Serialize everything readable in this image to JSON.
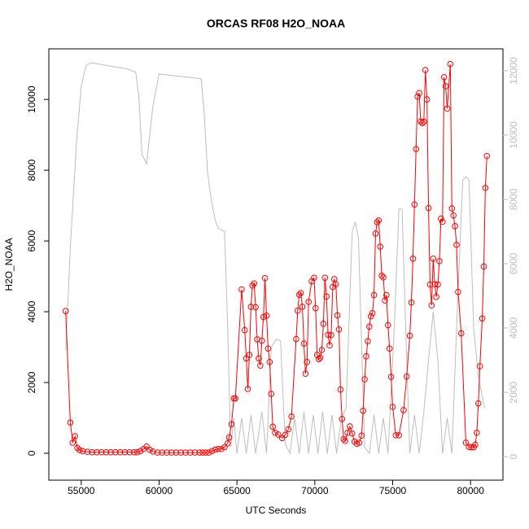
{
  "chart_data": {
    "type": "line",
    "title": "ORCAS RF08 H2O_NOAA",
    "x_label": "UTC Seconds",
    "y_label": "H2O_NOAA",
    "xlim": [
      52920,
      82080
    ],
    "ylim": [
      -760,
      11430
    ],
    "y2lim": [
      -730,
      12680
    ],
    "xticks": [
      55000,
      60000,
      65000,
      70000,
      75000,
      80000
    ],
    "yticks": [
      0,
      2000,
      4000,
      6000,
      8000,
      10000
    ],
    "y2ticks": [
      0,
      2000,
      4000,
      6000,
      8000,
      10000,
      12000
    ],
    "series": [
      {
        "color": "#ff0000",
        "markers": true,
        "x": [
          54000,
          54300,
          54450,
          54600,
          54750,
          54900,
          55100,
          55400,
          55700,
          56000,
          56300,
          56600,
          56900,
          57200,
          57500,
          57800,
          58100,
          58400,
          58600,
          58800,
          59000,
          59200,
          59400,
          59600,
          59900,
          60200,
          60500,
          60800,
          61100,
          61400,
          61700,
          62000,
          62300,
          62600,
          62800,
          63000,
          63200,
          63400,
          63600,
          63800,
          64000,
          64200,
          64400,
          64500,
          64650,
          64800,
          64900,
          65300,
          65500,
          65600,
          65700,
          65800,
          65900,
          66000,
          66100,
          66200,
          66300,
          66400,
          66500,
          66600,
          66700,
          66800,
          66900,
          67000,
          67100,
          67200,
          67300,
          67450,
          67650,
          67900,
          68100,
          68300,
          68500,
          68800,
          68900,
          69000,
          69100,
          69200,
          69300,
          69400,
          69500,
          69600,
          69800,
          69950,
          70050,
          70150,
          70250,
          70350,
          70450,
          70550,
          70650,
          70750,
          70850,
          70950,
          71050,
          71150,
          71250,
          71350,
          71450,
          71550,
          71650,
          71750,
          71850,
          71950,
          72100,
          72250,
          72400,
          72550,
          72700,
          72850,
          73000,
          73100,
          73200,
          73300,
          73400,
          73500,
          73600,
          73700,
          73800,
          73900,
          74000,
          74100,
          74200,
          74300,
          74400,
          74500,
          74600,
          74700,
          74800,
          74900,
          75000,
          75200,
          75400,
          75700,
          75900,
          76100,
          76200,
          76300,
          76400,
          76500,
          76600,
          76700,
          76800,
          76900,
          77000,
          77100,
          77200,
          77300,
          77400,
          77500,
          77600,
          77700,
          77800,
          77900,
          78000,
          78100,
          78200,
          78300,
          78400,
          78500,
          78700,
          78800,
          78900,
          79000,
          79100,
          79200,
          79400,
          79700,
          79900,
          80050,
          80200,
          80300,
          80400,
          80500,
          80600,
          80750,
          80850,
          80950,
          81050
        ],
        "values": [
          4020,
          870,
          300,
          480,
          150,
          90,
          60,
          40,
          30,
          30,
          30,
          30,
          30,
          30,
          30,
          30,
          30,
          30,
          30,
          60,
          120,
          190,
          100,
          50,
          20,
          20,
          20,
          20,
          20,
          20,
          20,
          20,
          20,
          20,
          20,
          20,
          20,
          60,
          100,
          120,
          120,
          170,
          280,
          450,
          820,
          1550,
          1550,
          4630,
          3480,
          2680,
          1820,
          2780,
          4140,
          4740,
          4800,
          4130,
          3220,
          2680,
          2480,
          3180,
          3850,
          4950,
          3890,
          2960,
          2580,
          1680,
          750,
          580,
          530,
          430,
          520,
          680,
          1040,
          3230,
          4030,
          4480,
          4530,
          4140,
          3100,
          2250,
          2580,
          4280,
          4860,
          4960,
          4100,
          2780,
          2660,
          2700,
          2920,
          3660,
          4960,
          4430,
          3350,
          3050,
          3340,
          4700,
          4920,
          4780,
          3900,
          3500,
          1800,
          970,
          400,
          350,
          580,
          760,
          560,
          330,
          270,
          300,
          500,
          1200,
          2090,
          2740,
          3170,
          3580,
          3870,
          3960,
          4470,
          6210,
          6530,
          6580,
          5840,
          5020,
          4970,
          4320,
          4470,
          3620,
          2960,
          2160,
          1310,
          510,
          510,
          1220,
          2170,
          3320,
          4260,
          5500,
          7030,
          8600,
          10080,
          10180,
          9380,
          9330,
          9370,
          10830,
          10000,
          6930,
          4770,
          4180,
          5500,
          4780,
          4420,
          4770,
          5430,
          6630,
          6540,
          10630,
          10370,
          9740,
          11000,
          6920,
          6720,
          6420,
          5890,
          4560,
          3390,
          300,
          180,
          170,
          170,
          240,
          580,
          1410,
          2460,
          3810,
          5280,
          7500,
          8400
        ]
      },
      {
        "color": "#bebebe",
        "axis": "y2",
        "x": [
          54000,
          54300,
          54700,
          55000,
          55300,
          55600,
          58000,
          58500,
          58700,
          58900,
          59200,
          59600,
          60000,
          60500,
          62700,
          62900,
          63100,
          63300,
          63600,
          63800,
          64200,
          64400,
          64600,
          64800,
          65000,
          65300,
          65600,
          65900,
          66200,
          66600,
          66900,
          67200,
          67500,
          67800,
          68100,
          68400,
          68700,
          69000,
          69300,
          69600,
          69900,
          70200,
          70500,
          70800,
          71100,
          71400,
          71700,
          72000,
          72400,
          72600,
          72800,
          73200,
          73500,
          73800,
          74100,
          74400,
          74700,
          75100,
          75400,
          75600,
          75900,
          76100,
          76400,
          76700,
          77000,
          77300,
          77600,
          77900,
          78200,
          78500,
          78800,
          79100,
          79500,
          79700,
          79900,
          80200,
          80500,
          80900
        ],
        "values": [
          3300,
          6500,
          9800,
          11500,
          12150,
          12250,
          12050,
          11950,
          11200,
          9400,
          9100,
          10900,
          11900,
          11870,
          11750,
          10650,
          8900,
          8150,
          7350,
          7100,
          7000,
          4100,
          300,
          1200,
          100,
          1200,
          100,
          1300,
          100,
          1400,
          100,
          3400,
          3650,
          3600,
          400,
          100,
          1200,
          100,
          1400,
          100,
          1300,
          100,
          1400,
          100,
          1300,
          100,
          1200,
          1500,
          7000,
          7300,
          6800,
          300,
          100,
          1300,
          100,
          1200,
          100,
          4000,
          7700,
          7700,
          3000,
          100,
          1300,
          100,
          1400,
          3000,
          4500,
          3000,
          100,
          1200,
          100,
          4000,
          8600,
          8700,
          8600,
          4000,
          2500,
          1500
        ]
      }
    ]
  }
}
